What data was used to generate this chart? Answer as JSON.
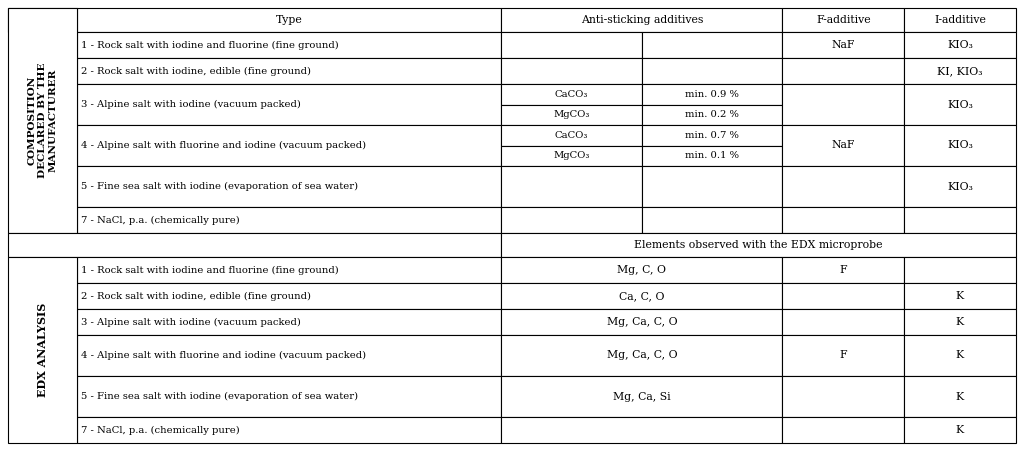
{
  "bg_color": "#ffffff",
  "border_color": "#000000",
  "text_color": "#000000",
  "font_size": 7.8,
  "small_font_size": 7.2,
  "rotated_label_top": "COMPOSITION\nDECLARED BY THE\nMANUFACTURER",
  "rotated_label_bottom": "EDX ANALYSIS",
  "top_rows": [
    {
      "type": "1 - Rock salt with iodine and fluorine (fine ground)",
      "anti1": "",
      "anti2": "",
      "f_add": "NaF",
      "i_add": "KIO₃",
      "double": false
    },
    {
      "type": "2 - Rock salt with iodine, edible (fine ground)",
      "anti1": "",
      "anti2": "",
      "f_add": "",
      "i_add": "KI, KIO₃",
      "double": false
    },
    {
      "type": "3 - Alpine salt with iodine (vacuum packed)",
      "anti1a": "CaCO₃",
      "anti2a": "min. 0.9 %",
      "anti1b": "MgCO₃",
      "anti2b": "min. 0.2 %",
      "f_add": "",
      "i_add": "KIO₃",
      "double": true
    },
    {
      "type": "4 - Alpine salt with fluorine and iodine (vacuum packed)",
      "anti1a": "CaCO₃",
      "anti2a": "min. 0.7 %",
      "anti1b": "MgCO₃",
      "anti2b": "min. 0.1 %",
      "f_add": "NaF",
      "i_add": "KIO₃",
      "double": true
    },
    {
      "type": "5 - Fine sea salt with iodine (evaporation of sea water)",
      "anti1": "",
      "anti2": "",
      "f_add": "",
      "i_add": "KIO₃",
      "double": false,
      "tall": true
    },
    {
      "type": "7 - NaCl, p.a. (chemically pure)",
      "anti1": "",
      "anti2": "",
      "f_add": "",
      "i_add": "",
      "double": false
    }
  ],
  "bottom_rows": [
    {
      "type": "1 - Rock salt with iodine and fluorine (fine ground)",
      "anti": "Mg, C, O",
      "f_add": "F",
      "i_add": ""
    },
    {
      "type": "2 - Rock salt with iodine, edible (fine ground)",
      "anti": "Ca, C, O",
      "f_add": "",
      "i_add": "K"
    },
    {
      "type": "3 - Alpine salt with iodine (vacuum packed)",
      "anti": "Mg, Ca, C, O",
      "f_add": "",
      "i_add": "K"
    },
    {
      "type": "4 - Alpine salt with fluorine and iodine (vacuum packed)",
      "anti": "Mg, Ca, C, O",
      "f_add": "F",
      "i_add": "K",
      "tall": true
    },
    {
      "type": "5 - Fine sea salt with iodine (evaporation of sea water)",
      "anti": "Mg, Ca, Si",
      "f_add": "",
      "i_add": "K",
      "tall": true
    },
    {
      "type": "7 - NaCl, p.a. (chemically pure)",
      "anti": "",
      "f_add": "",
      "i_add": "K"
    }
  ]
}
